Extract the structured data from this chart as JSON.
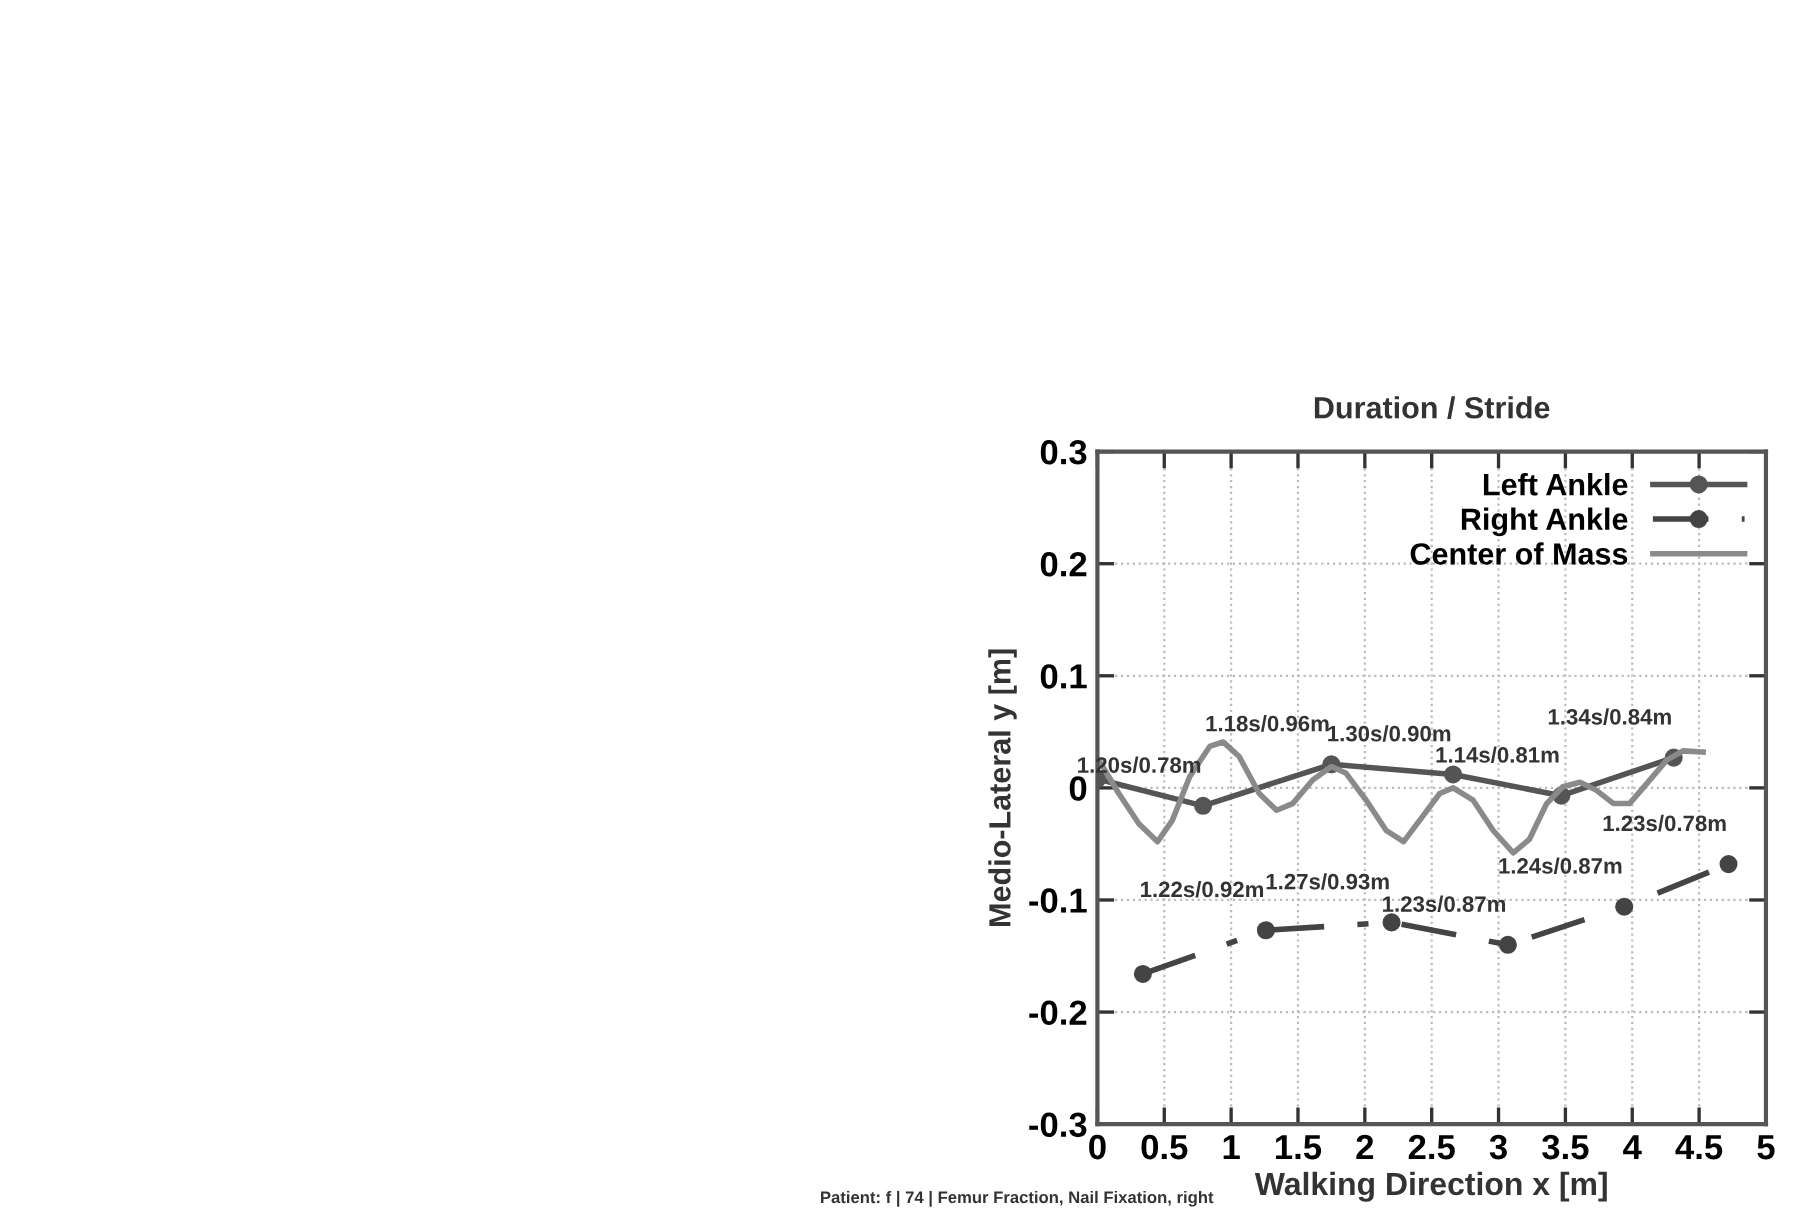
{
  "chart_data": {
    "type": "line",
    "title": "Duration / Stride",
    "xlabel": "Walking Direction x [m]",
    "ylabel": "Medio-Lateral y [m]",
    "xlim": [
      0,
      5
    ],
    "xticks": [
      0,
      0.5,
      1,
      1.5,
      2,
      2.5,
      3,
      3.5,
      4,
      4.5,
      5
    ],
    "ylim": [
      -0.3,
      0.3
    ],
    "yticks": [
      -0.3,
      -0.2,
      -0.1,
      0,
      0.1,
      0.2,
      0.3
    ],
    "grid": true,
    "legend": "top right",
    "series": [
      {
        "name": "Left Ankle",
        "color": "#555555",
        "marker": "circle",
        "line_style": "solid",
        "x": [
          0,
          0.79,
          1.75,
          2.66,
          3.47,
          4.31
        ],
        "values": [
          0.008,
          -0.016,
          0.021,
          0.012,
          -0.007,
          0.027
        ]
      },
      {
        "name": "Right Ankle",
        "color": "#444444",
        "marker": "circle",
        "line_style": "dashdot",
        "x": [
          0.34,
          1.26,
          2.2,
          3.07,
          3.94,
          4.72
        ],
        "values": [
          -0.166,
          -0.127,
          -0.12,
          -0.14,
          -0.106,
          -0.068
        ]
      },
      {
        "name": "Center of Mass",
        "color": "#8a8a8a",
        "marker": "none",
        "line_style": "solid",
        "x": [
          0,
          0.015,
          0.16,
          0.31,
          0.45,
          0.56,
          0.69,
          0.84,
          0.94,
          1.06,
          1.21,
          1.34,
          1.46,
          1.61,
          1.75,
          1.86,
          2.01,
          2.16,
          2.29,
          2.41,
          2.56,
          2.66,
          2.81,
          2.96,
          3.11,
          3.23,
          3.36,
          3.48,
          3.61,
          3.73,
          3.86,
          3.98,
          4.11,
          4.26,
          4.38,
          4.53
        ],
        "values": [
          0.019,
          0.024,
          -0.005,
          -0.032,
          -0.048,
          -0.029,
          0.01,
          0.037,
          0.041,
          0.028,
          -0.005,
          -0.02,
          -0.014,
          0.007,
          0.019,
          0.013,
          -0.011,
          -0.038,
          -0.048,
          -0.029,
          -0.005,
          0.0,
          -0.011,
          -0.038,
          -0.058,
          -0.046,
          -0.014,
          0.001,
          0.005,
          -0.002,
          -0.014,
          -0.014,
          0.004,
          0.025,
          0.033,
          0.032
        ]
      }
    ],
    "annotations": [
      {
        "text": "1.20s/0.78m",
        "x": 0.79,
        "y": -0.016
      },
      {
        "text": "1.18s/0.96m",
        "x": 1.75,
        "y": 0.021
      },
      {
        "text": "1.30s/0.90m",
        "x": 2.66,
        "y": 0.012
      },
      {
        "text": "1.14s/0.81m",
        "x": 3.47,
        "y": -0.007
      },
      {
        "text": "1.34s/0.84m",
        "x": 4.31,
        "y": 0.027
      },
      {
        "text": "1.22s/0.92m",
        "x": 1.26,
        "y": -0.127
      },
      {
        "text": "1.27s/0.93m",
        "x": 2.2,
        "y": -0.12
      },
      {
        "text": "1.23s/0.87m",
        "x": 3.07,
        "y": -0.14
      },
      {
        "text": "1.24s/0.87m",
        "x": 3.94,
        "y": -0.106
      },
      {
        "text": "1.23s/0.78m",
        "x": 4.72,
        "y": -0.068
      },
      "Patient: f | 74 | Femur Fraction, Nail Fixation, right"
    ]
  }
}
